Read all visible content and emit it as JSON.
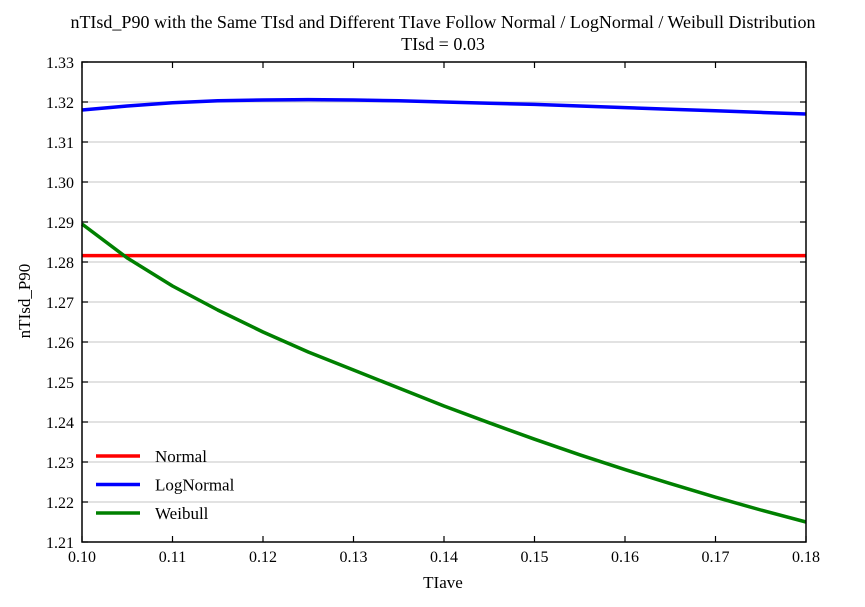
{
  "chart_data": {
    "type": "line",
    "title": "nTIsd_P90 with the Same TIsd and Different TIave Follow Normal / LogNormal / Weibull Distribution",
    "subtitle": "TIsd = 0.03",
    "xlabel": "TIave",
    "ylabel": "nTIsd_P90",
    "xlim": [
      0.1,
      0.18
    ],
    "ylim": [
      1.21,
      1.33
    ],
    "xticks": [
      "0.10",
      "0.11",
      "0.12",
      "0.13",
      "0.14",
      "0.15",
      "0.16",
      "0.17",
      "0.18"
    ],
    "yticks": [
      "1.21",
      "1.22",
      "1.23",
      "1.24",
      "1.25",
      "1.26",
      "1.27",
      "1.28",
      "1.29",
      "1.30",
      "1.31",
      "1.32",
      "1.33"
    ],
    "grid": "horizontal",
    "legend_position": "lower-left",
    "x": [
      0.1,
      0.105,
      0.11,
      0.115,
      0.12,
      0.125,
      0.13,
      0.135,
      0.14,
      0.145,
      0.15,
      0.155,
      0.16,
      0.165,
      0.17,
      0.175,
      0.18
    ],
    "series": [
      {
        "name": "Normal",
        "color": "#ff0000",
        "values": [
          1.2816,
          1.2816,
          1.2816,
          1.2816,
          1.2816,
          1.2816,
          1.2816,
          1.2816,
          1.2816,
          1.2816,
          1.2816,
          1.2816,
          1.2816,
          1.2816,
          1.2816,
          1.2816,
          1.2816
        ]
      },
      {
        "name": "LogNormal",
        "color": "#0000ff",
        "values": [
          1.318,
          1.319,
          1.3198,
          1.3203,
          1.3205,
          1.3206,
          1.3205,
          1.3203,
          1.32,
          1.3197,
          1.3194,
          1.319,
          1.3186,
          1.3182,
          1.3178,
          1.3174,
          1.317
        ]
      },
      {
        "name": "Weibull",
        "color": "#008000",
        "values": [
          1.2895,
          1.281,
          1.274,
          1.268,
          1.2625,
          1.2575,
          1.253,
          1.2485,
          1.244,
          1.2398,
          1.2357,
          1.2318,
          1.2281,
          1.2246,
          1.2212,
          1.218,
          1.215
        ]
      }
    ]
  }
}
